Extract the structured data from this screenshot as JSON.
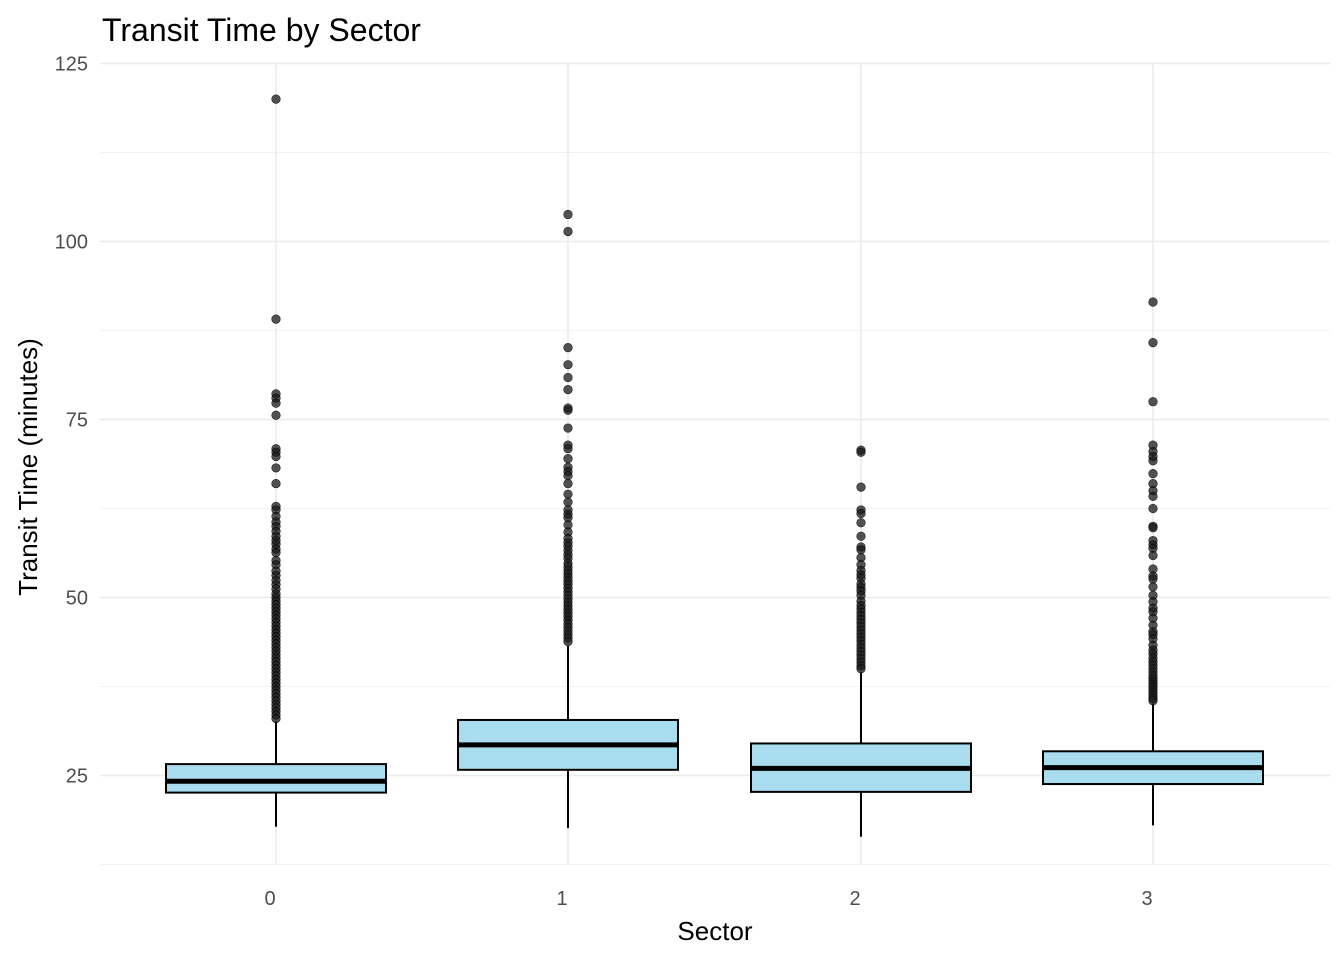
{
  "chart_data": {
    "type": "boxplot",
    "title": "Transit Time by Sector",
    "xlabel": "Sector",
    "ylabel": "Transit Time (minutes)",
    "categories": [
      "0",
      "1",
      "2",
      "3"
    ],
    "ylim": [
      12,
      125
    ],
    "y_ticks": [
      25,
      50,
      75,
      100,
      125
    ],
    "y_minor_ticks": [
      12.5,
      37.5,
      62.5,
      87.5,
      112.5
    ],
    "grid": true,
    "box_fill": "#aadcf0",
    "outlier_color": "#1a1a1a",
    "boxes": [
      {
        "category": "0",
        "q1": 22.6,
        "median": 24.2,
        "q3": 26.6,
        "whisker_low": 17.8,
        "whisker_high": 32.6,
        "outliers": [
          120.0,
          89.1,
          78.6,
          78.0,
          77.3,
          75.6,
          70.9,
          70.4,
          69.8,
          68.2,
          66.0,
          62.8,
          62.3,
          61.4,
          60.6,
          60.0,
          59.3,
          58.6,
          58.0,
          57.5,
          56.8,
          56.3,
          55.2,
          54.6,
          53.7,
          53.1,
          52.4,
          51.8,
          51.2,
          50.5,
          50.0,
          49.5,
          49.0,
          48.5,
          48.0,
          47.5,
          47.0,
          46.5,
          46.0,
          45.5,
          45.0,
          44.5,
          44.0,
          43.5,
          43.0,
          42.5,
          42.0,
          41.5,
          41.0,
          40.5,
          40.0,
          39.5,
          39.0,
          38.5,
          38.0,
          37.5,
          37.0,
          36.5,
          36.0,
          35.5,
          35.0,
          34.5,
          34.0,
          33.5,
          33.0
        ]
      },
      {
        "category": "1",
        "q1": 25.8,
        "median": 29.3,
        "q3": 32.8,
        "whisker_low": 17.6,
        "whisker_high": 43.2,
        "outliers": [
          103.8,
          101.4,
          85.1,
          82.7,
          80.9,
          79.2,
          76.6,
          76.3,
          73.8,
          71.4,
          70.9,
          69.5,
          68.3,
          67.7,
          67.1,
          66.0,
          64.5,
          63.4,
          62.3,
          61.7,
          61.2,
          60.2,
          59.2,
          58.3,
          57.7,
          57.2,
          56.6,
          56.0,
          55.5,
          54.8,
          54.3,
          53.8,
          53.3,
          52.8,
          52.3,
          51.8,
          51.3,
          50.8,
          50.3,
          49.8,
          49.3,
          48.8,
          48.3,
          47.8,
          47.3,
          46.8,
          46.3,
          45.8,
          45.3,
          44.8,
          44.3,
          43.8
        ]
      },
      {
        "category": "2",
        "q1": 22.7,
        "median": 26.0,
        "q3": 29.5,
        "whisker_low": 16.4,
        "whisker_high": 39.5,
        "outliers": [
          70.7,
          70.4,
          65.5,
          62.3,
          61.8,
          60.5,
          58.6,
          57.1,
          56.7,
          55.6,
          54.6,
          53.8,
          53.2,
          52.7,
          51.9,
          51.4,
          50.9,
          50.3,
          49.5,
          48.9,
          48.4,
          47.9,
          47.4,
          46.9,
          46.4,
          45.9,
          45.4,
          44.9,
          44.4,
          43.9,
          43.4,
          42.9,
          42.4,
          41.9,
          41.4,
          40.9,
          40.4,
          40.0
        ]
      },
      {
        "category": "3",
        "q1": 23.8,
        "median": 26.1,
        "q3": 28.4,
        "whisker_low": 18.0,
        "whisker_high": 35.1,
        "outliers": [
          91.5,
          85.8,
          77.5,
          71.4,
          70.5,
          69.8,
          69.2,
          67.4,
          66.0,
          65.0,
          64.2,
          62.5,
          60.0,
          59.8,
          58.0,
          57.4,
          56.9,
          55.9,
          54.0,
          53.0,
          52.6,
          51.5,
          50.3,
          49.4,
          48.5,
          48.0,
          47.1,
          46.1,
          45.2,
          44.8,
          44.2,
          43.3,
          42.6,
          42.1,
          41.5,
          41.0,
          40.5,
          40.0,
          39.5,
          39.0,
          38.6,
          38.2,
          37.8,
          37.4,
          37.0,
          36.6,
          36.2,
          35.8,
          35.5
        ]
      }
    ]
  }
}
